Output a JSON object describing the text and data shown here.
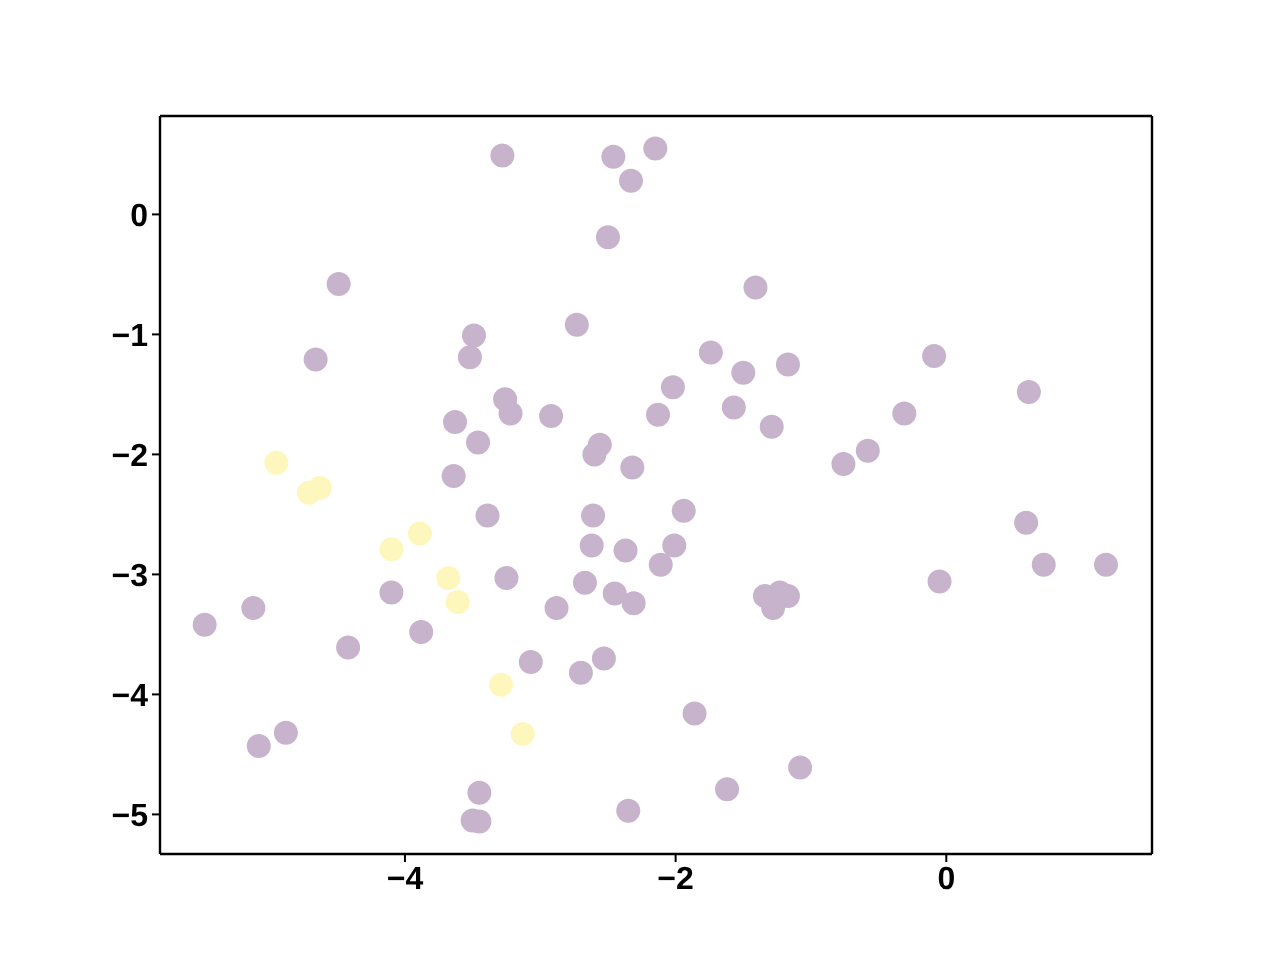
{
  "chart_data": {
    "type": "scatter",
    "marker": "circle",
    "xlim": [
      -5.81,
      1.52
    ],
    "ylim": [
      -5.33,
      0.82
    ],
    "xticks": [
      {
        "value": -4,
        "label": "−4"
      },
      {
        "value": -2,
        "label": "−2"
      },
      0
    ],
    "yticks": [
      0,
      {
        "value": -1,
        "label": "−1"
      },
      {
        "value": -2,
        "label": "−2"
      },
      {
        "value": -3,
        "label": "−3"
      },
      {
        "value": -4,
        "label": "−4"
      },
      {
        "value": -5,
        "label": "−5"
      }
    ],
    "series": [
      {
        "color": "#c7b3cc",
        "x": [
          -3.28,
          -2.46,
          -2.15,
          -2.33,
          -2.5,
          -4.49,
          -1.41,
          -2.73,
          -3.49,
          -4.66,
          -3.52,
          -1.74,
          -1.5,
          -1.17,
          -0.09,
          0.61,
          -3.26,
          -2.02,
          -3.63,
          -3.22,
          -2.92,
          -2.13,
          -1.57,
          -1.29,
          -0.31,
          -2.56,
          -2.6,
          -2.32,
          -3.46,
          -3.64,
          -0.58,
          -0.76,
          -3.39,
          -2.61,
          -1.94,
          -2.62,
          -2.37,
          -2.01,
          -2.11,
          0.59,
          0.72,
          1.18,
          -3.25,
          -2.67,
          -2.45,
          -2.31,
          -4.1,
          -2.88,
          -5.48,
          -5.12,
          -3.88,
          -4.42,
          -5.08,
          -4.88,
          -3.45,
          -3.5,
          -3.45,
          -1.34,
          -1.23,
          -1.17,
          -1.28,
          -3.07,
          -2.53,
          -2.7,
          -1.86,
          -1.08,
          -1.62,
          -2.35,
          -0.05
        ],
        "values": [
          0.49,
          0.48,
          0.55,
          0.28,
          -0.19,
          -0.58,
          -0.61,
          -0.92,
          -1.01,
          -1.21,
          -1.19,
          -1.15,
          -1.32,
          -1.25,
          -1.18,
          -1.48,
          -1.54,
          -1.44,
          -1.73,
          -1.66,
          -1.68,
          -1.67,
          -1.61,
          -1.77,
          -1.66,
          -1.92,
          -2.0,
          -2.11,
          -1.9,
          -2.18,
          -1.97,
          -2.08,
          -2.51,
          -2.51,
          -2.47,
          -2.76,
          -2.8,
          -2.76,
          -2.92,
          -2.57,
          -2.92,
          -2.92,
          -3.03,
          -3.07,
          -3.16,
          -3.24,
          -3.15,
          -3.28,
          -3.42,
          -3.28,
          -3.48,
          -3.61,
          -4.43,
          -4.32,
          -4.82,
          -5.05,
          -5.06,
          -3.18,
          -3.15,
          -3.18,
          -3.28,
          -3.73,
          -3.7,
          -3.82,
          -4.16,
          -4.61,
          -4.79,
          -4.97,
          -3.06
        ]
      },
      {
        "color": "#fef7bd",
        "x": [
          -4.95,
          -4.63,
          -4.71,
          -3.89,
          -4.1,
          -3.68,
          -3.61,
          -3.29,
          -3.13
        ],
        "values": [
          -2.07,
          -2.28,
          -2.32,
          -2.66,
          -2.79,
          -3.03,
          -3.23,
          -3.92,
          -4.33
        ]
      }
    ]
  }
}
